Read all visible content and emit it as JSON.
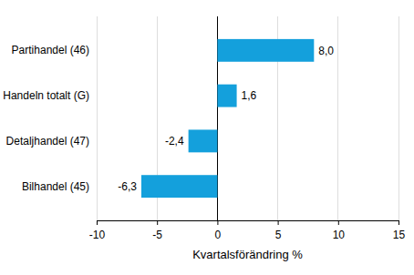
{
  "chart_data": {
    "type": "bar",
    "orientation": "horizontal",
    "categories": [
      "Partihandel (46)",
      "Handeln totalt (G)",
      "Detaljhandel (47)",
      "Bilhandel (45)"
    ],
    "values": [
      8.0,
      1.6,
      -2.4,
      -6.3
    ],
    "value_labels": [
      "8,0",
      "1,6",
      "-2,4",
      "-6,3"
    ],
    "data_labels": true,
    "color": "#14a0dc",
    "x_label": "Kvartalsförändring %",
    "xlim": [
      -10,
      15
    ],
    "xticks": [
      -10,
      -5,
      0,
      5,
      10,
      15
    ],
    "grid": true
  }
}
